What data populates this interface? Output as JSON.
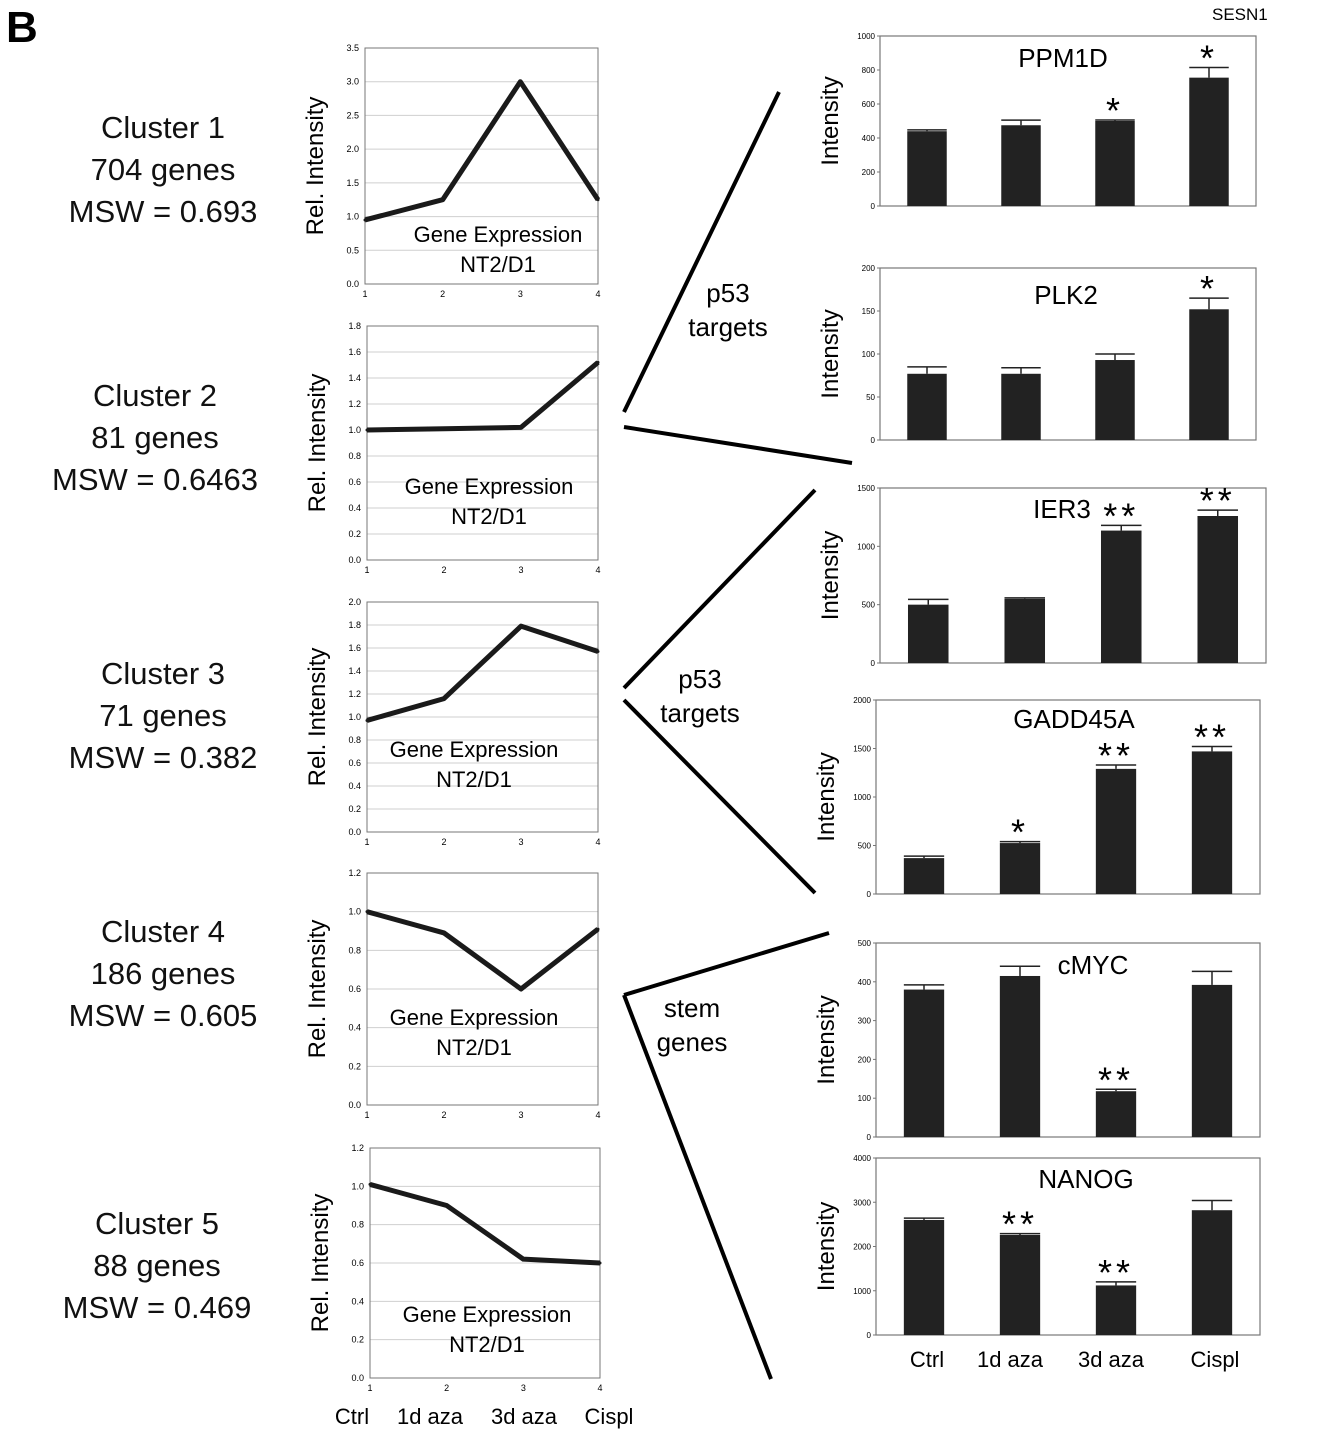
{
  "panel_letter": "B",
  "top_right_label": "SESN1",
  "clusters": [
    {
      "title": "Cluster 1",
      "genes": "704 genes",
      "msw": "MSW = 0.693"
    },
    {
      "title": "Cluster 2",
      "genes": "81 genes",
      "msw": "MSW = 0.6463"
    },
    {
      "title": "Cluster 3",
      "genes": "71 genes",
      "msw": "MSW = 0.382"
    },
    {
      "title": "Cluster 4",
      "genes": "186 genes",
      "msw": "MSW = 0.605"
    },
    {
      "title": "Cluster 5",
      "genes": "88 genes",
      "msw": "MSW = 0.469"
    }
  ],
  "groups": [
    {
      "lines": [
        "p53",
        "targets"
      ]
    },
    {
      "lines": [
        "p53",
        "targets"
      ]
    },
    {
      "lines": [
        "stem",
        "genes"
      ]
    }
  ],
  "bottom_categories": [
    "Ctrl",
    "1d aza",
    "3d aza",
    "Cispl"
  ],
  "colors": {
    "line": "#1a1a1a",
    "bar": "#222222",
    "grid": "#cfcfcf",
    "frame": "#777777"
  },
  "chart_data": [
    {
      "type": "line",
      "ylabel": "Rel. Intensity",
      "annotation": [
        "Gene Expression",
        "NT2/D1"
      ],
      "x": [
        1,
        2,
        3,
        4
      ],
      "values": [
        0.95,
        1.25,
        3.0,
        1.25
      ],
      "ylim": [
        0,
        3.5
      ],
      "yticks": [
        "0.0",
        "0.5",
        "1.0",
        "1.5",
        "2.0",
        "2.5",
        "3.0",
        "3.5"
      ],
      "xticks": [
        "1",
        "2",
        "3",
        "4"
      ],
      "grid": true
    },
    {
      "type": "line",
      "ylabel": "Rel. Intensity",
      "annotation": [
        "Gene Expression",
        "NT2/D1"
      ],
      "x": [
        1,
        2,
        3,
        4
      ],
      "values": [
        1.0,
        1.01,
        1.02,
        1.52
      ],
      "ylim": [
        0,
        1.8
      ],
      "yticks": [
        "0.0",
        "0.2",
        "0.4",
        "0.6",
        "0.8",
        "1.0",
        "1.2",
        "1.4",
        "1.6",
        "1.8"
      ],
      "xticks": [
        "1",
        "2",
        "3",
        "4"
      ],
      "grid": true
    },
    {
      "type": "line",
      "ylabel": "Rel. Intensity",
      "annotation": [
        "Gene Expression",
        "NT2/D1"
      ],
      "x": [
        1,
        2,
        3,
        4
      ],
      "values": [
        0.97,
        1.16,
        1.79,
        1.57
      ],
      "ylim": [
        0,
        2.0
      ],
      "yticks": [
        "0.0",
        "0.2",
        "0.4",
        "0.6",
        "0.8",
        "1.0",
        "1.2",
        "1.4",
        "1.6",
        "1.8",
        "2.0"
      ],
      "xticks": [
        "1",
        "2",
        "3",
        "4"
      ],
      "grid": true
    },
    {
      "type": "line",
      "ylabel": "Rel. Intensity",
      "annotation": [
        "Gene Expression",
        "NT2/D1"
      ],
      "x": [
        1,
        2,
        3,
        4
      ],
      "values": [
        1.0,
        0.89,
        0.6,
        0.91
      ],
      "ylim": [
        0,
        1.2
      ],
      "yticks": [
        "0.0",
        "0.2",
        "0.4",
        "0.6",
        "0.8",
        "1.0",
        "1.2"
      ],
      "xticks": [
        "1",
        "2",
        "3",
        "4"
      ],
      "grid": true
    },
    {
      "type": "line",
      "ylabel": "Rel. Intensity",
      "annotation": [
        "Gene Expression",
        "NT2/D1"
      ],
      "x": [
        1,
        2,
        3,
        4
      ],
      "values": [
        1.01,
        0.9,
        0.62,
        0.6
      ],
      "ylim": [
        0,
        1.2
      ],
      "yticks": [
        "0.0",
        "0.2",
        "0.4",
        "0.6",
        "0.8",
        "1.0",
        "1.2"
      ],
      "xticks": [
        "1",
        "2",
        "3",
        "4"
      ],
      "grid": true
    },
    {
      "type": "bar",
      "title": "PPM1D",
      "ylabel": "Intensity",
      "categories": [
        "Ctrl",
        "1d aza",
        "3d aza",
        "Cispl"
      ],
      "values": [
        440,
        475,
        500,
        755
      ],
      "errors": [
        8,
        30,
        6,
        60
      ],
      "significance": [
        "",
        "",
        "*",
        "*"
      ],
      "ylim": [
        0,
        1000
      ],
      "yticks": [
        "0",
        "200",
        "400",
        "600",
        "800",
        "1000"
      ]
    },
    {
      "type": "bar",
      "title": "PLK2",
      "ylabel": "Intensity",
      "categories": [
        "Ctrl",
        "1d aza",
        "3d aza",
        "Cispl"
      ],
      "values": [
        77,
        77,
        93,
        152
      ],
      "errors": [
        8,
        7,
        7,
        13
      ],
      "significance": [
        "",
        "",
        "",
        "*"
      ],
      "ylim": [
        0,
        200
      ],
      "yticks": [
        "0",
        "50",
        "100",
        "150",
        "200"
      ]
    },
    {
      "type": "bar",
      "title": "IER3",
      "ylabel": "Intensity",
      "categories": [
        "Ctrl",
        "1d aza",
        "3d aza",
        "Cispl"
      ],
      "values": [
        500,
        550,
        1135,
        1260
      ],
      "errors": [
        45,
        8,
        45,
        50
      ],
      "significance": [
        "",
        "",
        "**",
        "**"
      ],
      "ylim": [
        0,
        1500
      ],
      "yticks": [
        "0",
        "500",
        "1000",
        "1500"
      ]
    },
    {
      "type": "bar",
      "title": "GADD45A",
      "ylabel": "Intensity",
      "categories": [
        "Ctrl",
        "1d aza",
        "3d aza",
        "Cispl"
      ],
      "values": [
        370,
        525,
        1290,
        1470
      ],
      "errors": [
        20,
        15,
        40,
        50
      ],
      "significance": [
        "",
        "*",
        "**",
        "**"
      ],
      "ylim": [
        0,
        2000
      ],
      "yticks": [
        "0",
        "500",
        "1000",
        "1500",
        "2000"
      ]
    },
    {
      "type": "bar",
      "title": "cMYC",
      "ylabel": "Intensity",
      "categories": [
        "Ctrl",
        "1d aza",
        "3d aza",
        "Cispl"
      ],
      "values": [
        380,
        415,
        118,
        392
      ],
      "errors": [
        12,
        25,
        5,
        35
      ],
      "significance": [
        "",
        "",
        "**",
        ""
      ],
      "ylim": [
        0,
        500
      ],
      "yticks": [
        "0",
        "100",
        "200",
        "300",
        "400",
        "500"
      ]
    },
    {
      "type": "bar",
      "title": "NANOG",
      "ylabel": "Intensity",
      "categories": [
        "Ctrl",
        "1d aza",
        "3d aza",
        "Cispl"
      ],
      "values": [
        2600,
        2260,
        1120,
        2820
      ],
      "errors": [
        40,
        30,
        80,
        220
      ],
      "significance": [
        "",
        "**",
        "**",
        ""
      ],
      "ylim": [
        0,
        4000
      ],
      "yticks": [
        "0",
        "1000",
        "2000",
        "3000",
        "4000"
      ]
    }
  ]
}
